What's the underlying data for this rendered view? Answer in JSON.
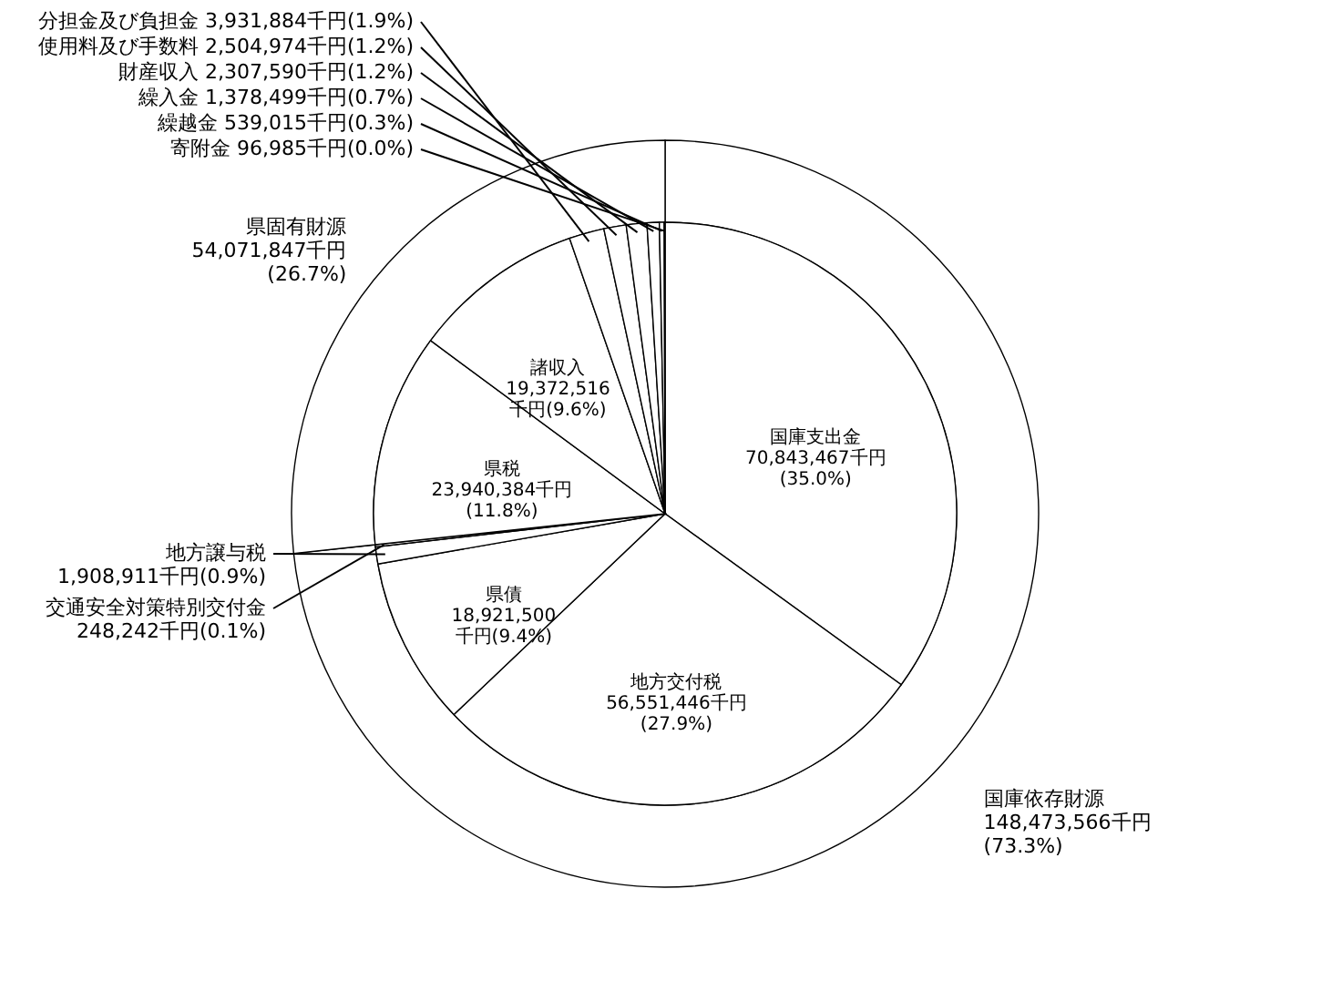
{
  "chart_data": [
    {
      "type": "pie",
      "categories": [
        "国庫支出金",
        "地方交付税",
        "県債",
        "地方譲与税",
        "交通安全対策特別交付金",
        "県税",
        "諸収入",
        "分担金及び負担金",
        "使用料及び手数料",
        "財産収入",
        "繰入金",
        "繰越金",
        "寄附金"
      ],
      "values": [
        70843467,
        56551446,
        18921500,
        1908911,
        248242,
        23940384,
        19372516,
        3931884,
        2504974,
        2307590,
        1378499,
        539015,
        96985
      ],
      "colors": [
        "#ffffff",
        "#ffffff",
        "#ffffff",
        "#ffffff",
        "#ffffff",
        "#ffffff",
        "#ffffff",
        "#ffffff",
        "#ffffff",
        "#ffffff",
        "#ffffff",
        "#ffffff",
        "#ffffff"
      ],
      "value_labels": [
        "70,843,467千円(35.0%)",
        "56,551,446千円(27.9%)",
        "18,921,500千円(9.4%)",
        "1,908,911千円(0.9%)",
        "248,242千円(0.1%)",
        "23,940,384千円(11.8%)",
        "19,372,516千円(9.6%)",
        "3,931,884千円(1.9%)",
        "2,504,974千円(1.2%)",
        "2,307,590千円(1.2%)",
        "1,378,499千円(0.7%)",
        "539,015千円(0.3%)",
        "96,985千円(0.0%)"
      ]
    },
    {
      "type": "donut",
      "categories": [
        "国庫依存財源",
        "県固有財源"
      ],
      "values": [
        148473566,
        54071847
      ],
      "colors": [
        "#ffffff",
        "#ffffff"
      ],
      "value_labels": [
        "148,473,566千円(73.3%)",
        "54,071,847千円(26.7%)"
      ]
    }
  ]
}
